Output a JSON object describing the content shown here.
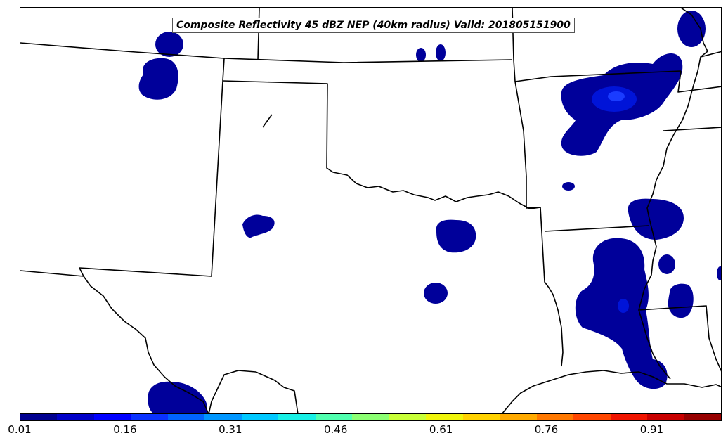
{
  "title": "Composite Reflectivity 45 dBZ NEP (40km radius) Valid: 201805151900",
  "colorbar": {
    "colors": [
      "#00008f",
      "#0000c8",
      "#0000ff",
      "#0a32ff",
      "#0064ff",
      "#0096ff",
      "#00c8ff",
      "#18f0e6",
      "#50ffaf",
      "#8cff73",
      "#c8ff37",
      "#f0f50a",
      "#ffd200",
      "#ffaa00",
      "#ff7800",
      "#ff4600",
      "#f01400",
      "#c80000",
      "#960000"
    ],
    "tick_labels": [
      "0.01",
      "0.16",
      "0.31",
      "0.46",
      "0.61",
      "0.76",
      "0.91"
    ]
  },
  "legend_colors": {
    "low_prob": "#00009a",
    "mid_prob": "#0014d8",
    "high_prob": "#1a3cff",
    "boundary": "#000000"
  }
}
